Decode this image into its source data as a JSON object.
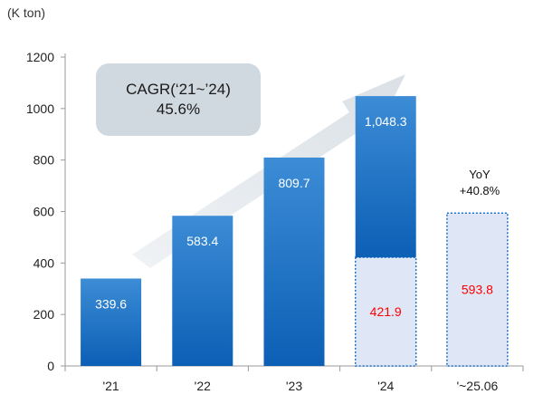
{
  "unit_label": "(K ton)",
  "cagr": {
    "line1": "CAGR(‘21~’24)",
    "line2": "45.6%"
  },
  "yoy": {
    "line1": "YoY",
    "line2": "+40.8%"
  },
  "colors": {
    "bar_top": "#3c8cd6",
    "bar_bottom": "#0c5fb5",
    "half_fill": "#dfe6f5",
    "half_border": "#1a6fc2",
    "half_text": "#ff0000",
    "arrow": "#d6dde3",
    "axis": "#999999",
    "grid": "#d9d9d9"
  },
  "chart_data": {
    "type": "bar",
    "categories": [
      "'21",
      "'22",
      "'23",
      "'24",
      "'~25.06"
    ],
    "series": [
      {
        "values": [
          339.6,
          583.4,
          809.7,
          1048.3,
          null
        ],
        "labels": [
          "339.6",
          "583.4",
          "809.7",
          "1,048.3",
          ""
        ]
      },
      {
        "values": [
          null,
          null,
          null,
          421.9,
          593.8
        ],
        "labels": [
          "",
          "",
          "",
          "421.9",
          "593.8"
        ]
      }
    ],
    "yticks": [
      "0",
      "200",
      "400",
      "600",
      "800",
      "1000",
      "1200"
    ],
    "ylim": [
      0,
      1200
    ]
  }
}
